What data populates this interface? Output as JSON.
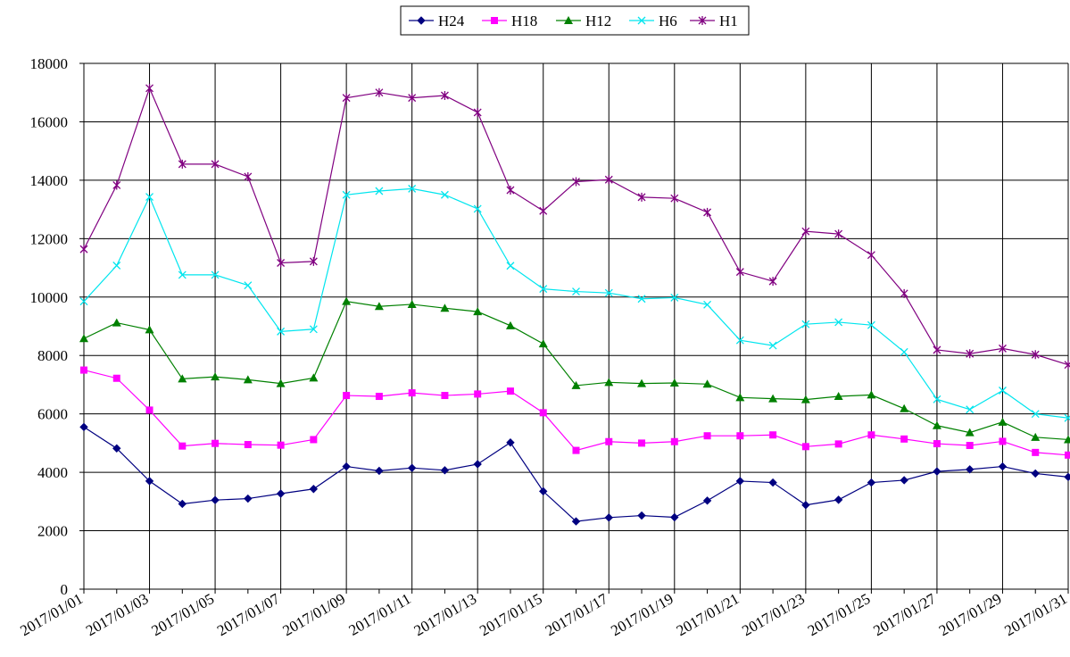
{
  "chart_data": {
    "type": "line",
    "title": "",
    "xlabel": "",
    "ylabel": "",
    "ylim": [
      0,
      18000
    ],
    "y_ticks": [
      0,
      2000,
      4000,
      6000,
      8000,
      10000,
      12000,
      14000,
      16000,
      18000
    ],
    "grid": true,
    "legend_position": "top-center",
    "x": [
      "2017/01/01",
      "2017/01/02",
      "2017/01/03",
      "2017/01/04",
      "2017/01/05",
      "2017/01/06",
      "2017/01/07",
      "2017/01/08",
      "2017/01/09",
      "2017/01/10",
      "2017/01/11",
      "2017/01/12",
      "2017/01/13",
      "2017/01/14",
      "2017/01/15",
      "2017/01/16",
      "2017/01/17",
      "2017/01/18",
      "2017/01/19",
      "2017/01/20",
      "2017/01/21",
      "2017/01/22",
      "2017/01/23",
      "2017/01/24",
      "2017/01/25",
      "2017/01/26",
      "2017/01/27",
      "2017/01/28",
      "2017/01/29",
      "2017/01/30",
      "2017/01/31"
    ],
    "x_tick_labels": [
      "2017/01/01",
      "2017/01/03",
      "2017/01/05",
      "2017/01/07",
      "2017/01/09",
      "2017/01/11",
      "2017/01/13",
      "2017/01/15",
      "2017/01/17",
      "2017/01/19",
      "2017/01/21",
      "2017/01/23",
      "2017/01/25",
      "2017/01/27",
      "2017/01/29",
      "2017/01/31"
    ],
    "series": [
      {
        "name": "H24",
        "color": "#000080",
        "marker": "diamond",
        "values": [
          5550,
          4820,
          3700,
          2920,
          3050,
          3100,
          3270,
          3430,
          4200,
          4050,
          4150,
          4070,
          4280,
          5020,
          3350,
          2320,
          2450,
          2520,
          2460,
          3030,
          3700,
          3650,
          2880,
          3060,
          3650,
          3730,
          4030,
          4100,
          4200,
          3960,
          3840
        ]
      },
      {
        "name": "H18",
        "color": "#ff00ff",
        "marker": "square",
        "values": [
          7500,
          7220,
          6130,
          4900,
          4990,
          4950,
          4930,
          5120,
          6630,
          6600,
          6720,
          6630,
          6680,
          6780,
          6040,
          4750,
          5050,
          5000,
          5050,
          5250,
          5250,
          5280,
          4880,
          4970,
          5280,
          5140,
          4980,
          4920,
          5060,
          4680,
          4590
        ]
      },
      {
        "name": "H12",
        "color": "#008000",
        "marker": "triangle",
        "values": [
          8580,
          9120,
          8880,
          7200,
          7270,
          7170,
          7040,
          7230,
          9850,
          9680,
          9750,
          9620,
          9500,
          9020,
          8400,
          6970,
          7080,
          7040,
          7060,
          7020,
          6560,
          6520,
          6490,
          6600,
          6650,
          6180,
          5600,
          5360,
          5720,
          5200,
          5120
        ]
      },
      {
        "name": "H6",
        "color": "#00e5ee",
        "marker": "x",
        "values": [
          9850,
          11080,
          13430,
          10760,
          10760,
          10400,
          8820,
          8900,
          13500,
          13630,
          13710,
          13500,
          13020,
          11070,
          10280,
          10190,
          10140,
          9940,
          9980,
          9740,
          8520,
          8340,
          9070,
          9140,
          9040,
          8120,
          6500,
          6150,
          6800,
          6000,
          5860
        ]
      },
      {
        "name": "H1",
        "color": "#800080",
        "marker": "star",
        "values": [
          11640,
          13830,
          17150,
          14550,
          14550,
          14120,
          11170,
          11220,
          16820,
          17000,
          16820,
          16900,
          16320,
          13660,
          12950,
          13950,
          14020,
          13420,
          13380,
          12900,
          10860,
          10540,
          12250,
          12160,
          11440,
          10120,
          8190,
          8060,
          8240,
          8030,
          7680
        ]
      }
    ]
  }
}
